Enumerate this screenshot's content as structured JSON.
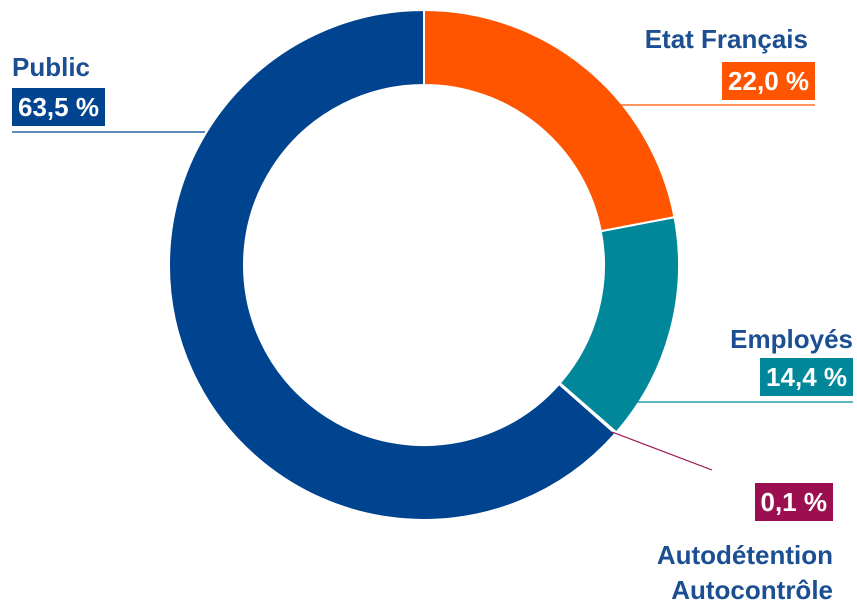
{
  "chart_data": {
    "type": "donut",
    "categories": [
      "Etat Français",
      "Employés",
      "Autodétention\nAutocontrôle",
      "Public"
    ],
    "values": [
      22.0,
      14.4,
      0.1,
      63.5
    ],
    "value_labels": [
      "22,0 %",
      "14,4 %",
      "0,1 %",
      "63,5 %"
    ],
    "colors": [
      "#ff5500",
      "#00889a",
      "#9b0e4f",
      "#00438f"
    ]
  }
}
